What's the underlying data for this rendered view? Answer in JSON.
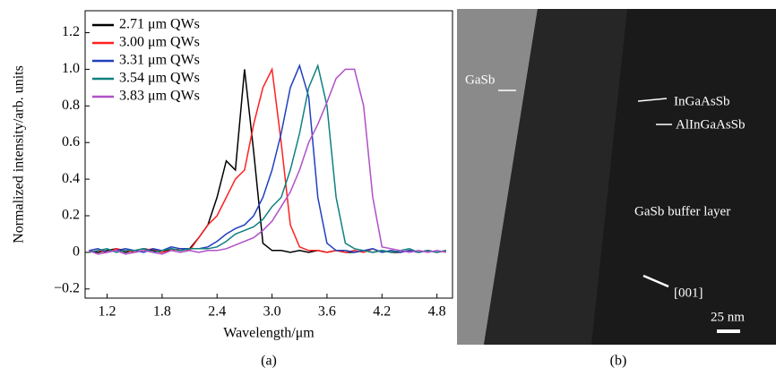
{
  "chart_data": {
    "type": "line",
    "y_label": "Normalized intensity/arb. units",
    "x_label": "Wavelength/μm",
    "x": [
      1.0,
      1.1,
      1.2,
      1.3,
      1.4,
      1.5,
      1.6,
      1.7,
      1.8,
      1.9,
      2.0,
      2.1,
      2.2,
      2.3,
      2.4,
      2.5,
      2.6,
      2.7,
      2.8,
      2.9,
      3.0,
      3.1,
      3.2,
      3.3,
      3.4,
      3.5,
      3.6,
      3.7,
      3.8,
      3.9,
      4.0,
      4.1,
      4.2,
      4.3,
      4.4,
      4.5,
      4.6,
      4.7,
      4.8,
      4.9
    ],
    "series": [
      {
        "name": "2.71 μm QWs",
        "color": "#000000",
        "values": [
          0.01,
          0,
          0.01,
          0.02,
          0,
          0.01,
          0.02,
          0.01,
          0,
          0.02,
          0.01,
          0.02,
          0.08,
          0.15,
          0.3,
          0.5,
          0.45,
          1.0,
          0.55,
          0.05,
          0.01,
          0.01,
          0,
          0.01,
          0,
          0.01,
          0,
          0.01,
          0,
          0,
          0.01,
          0,
          0.01,
          0,
          0,
          0.01,
          0,
          0.01,
          0,
          0.01
        ]
      },
      {
        "name": "3.00 μm QWs",
        "color": "#ff2020",
        "values": [
          0,
          0.01,
          0,
          0.02,
          0.01,
          0,
          0.01,
          0.02,
          0,
          0.01,
          0.02,
          0.01,
          0.08,
          0.15,
          0.2,
          0.3,
          0.4,
          0.45,
          0.7,
          0.9,
          1.0,
          0.6,
          0.15,
          0.03,
          0.01,
          0.01,
          0,
          0.01,
          0,
          0.01,
          0,
          0.02,
          0,
          0.01,
          0,
          0.01,
          0,
          0.01,
          0,
          0.01
        ]
      },
      {
        "name": "3.31 μm QWs",
        "color": "#2040c0",
        "values": [
          0.01,
          0.02,
          0,
          0.01,
          0.02,
          0.01,
          0,
          0.02,
          0.01,
          0.03,
          0.02,
          0.02,
          0.02,
          0.03,
          0.06,
          0.1,
          0.13,
          0.15,
          0.2,
          0.3,
          0.45,
          0.65,
          0.9,
          1.02,
          0.85,
          0.3,
          0.05,
          0.01,
          0.01,
          0,
          0.01,
          0.02,
          0,
          0.01,
          0,
          0.01,
          0,
          0.01,
          0,
          0.01
        ]
      },
      {
        "name": "3.54 μm QWs",
        "color": "#108080",
        "values": [
          0,
          0.01,
          0.02,
          0,
          0.01,
          0.01,
          0.02,
          0,
          0.01,
          0.02,
          0.01,
          0.02,
          0.02,
          0.02,
          0.03,
          0.06,
          0.1,
          0.12,
          0.14,
          0.18,
          0.25,
          0.3,
          0.45,
          0.65,
          0.9,
          1.02,
          0.8,
          0.3,
          0.05,
          0.02,
          0.01,
          0,
          0.01,
          0,
          0.01,
          0.02,
          0,
          0.01,
          0,
          0.01
        ]
      },
      {
        "name": "3.83 μm QWs",
        "color": "#b050c8",
        "values": [
          0.01,
          -0.01,
          0,
          0.01,
          -0.01,
          0,
          0.01,
          0,
          -0.01,
          0.01,
          0,
          0.01,
          0,
          0.01,
          0.01,
          0.02,
          0.04,
          0.06,
          0.08,
          0.12,
          0.17,
          0.25,
          0.33,
          0.45,
          0.6,
          0.7,
          0.82,
          0.95,
          1.0,
          1.0,
          0.8,
          0.3,
          0.03,
          0.02,
          0.01,
          0,
          0.01,
          0,
          0.01,
          0
        ]
      }
    ],
    "xlim": [
      0.96,
      4.97
    ],
    "ylim": [
      -0.25,
      1.32
    ],
    "xticks": [
      1.2,
      1.8,
      2.4,
      {
        "value": 3.0,
        "label": "3.0"
      },
      3.6,
      4.2,
      4.8
    ],
    "yticks": [
      {
        "value": -0.2,
        "label": "−0.2"
      },
      0,
      0.2,
      0.4,
      0.6,
      0.8,
      {
        "value": 1.0,
        "label": "1.0"
      },
      1.2
    ],
    "legend": "upper left"
  },
  "image": {
    "labels": [
      "GaSb",
      "InGaAsSb",
      "AlInGaAsSb",
      "GaSb buffer layer",
      "[001]",
      "25 nm"
    ]
  },
  "captions": [
    "(a)",
    "(b)"
  ]
}
